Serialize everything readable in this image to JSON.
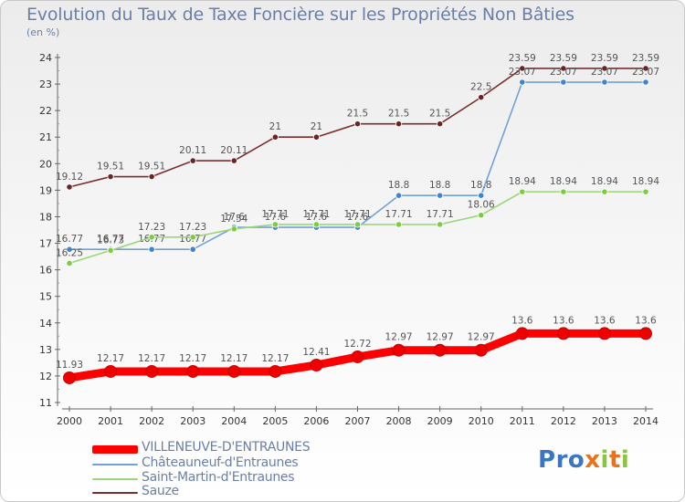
{
  "title": "Evolution du Taux de Taxe Foncière sur les Propriétés Non Bâties",
  "subtitle": "(en %)",
  "logo": {
    "letters": [
      "P",
      "r",
      "o",
      "x",
      "i",
      "t",
      "i"
    ],
    "colors": [
      "#3a76c4",
      "#3a76c4",
      "#3a76c4",
      "#e9731c",
      "#8bc53f",
      "#e9731c",
      "#8bc53f"
    ]
  },
  "chart_data": {
    "type": "line",
    "title": "Evolution du Taux de Taxe Foncière sur les Propriétés Non Bâties",
    "ylabel": "(en %)",
    "xlabel": "",
    "x": [
      "2000",
      "2001",
      "2002",
      "2003",
      "2004",
      "2005",
      "2006",
      "2007",
      "2008",
      "2009",
      "2010",
      "2011",
      "2012",
      "2013",
      "2014"
    ],
    "ylim": [
      11,
      24
    ],
    "yticks": [
      "11",
      "12",
      "13",
      "14",
      "15",
      "16",
      "17",
      "18",
      "19",
      "20",
      "21",
      "22",
      "23",
      "24"
    ],
    "grid": false,
    "legend_position": "bottom-left",
    "series": [
      {
        "name": "VILLENEUVE-D'ENTRAUNES",
        "color": "#ff0000",
        "markerColor": "#ee0000",
        "emphasis": true,
        "values": [
          11.93,
          12.17,
          12.17,
          12.17,
          12.17,
          12.17,
          12.41,
          12.72,
          12.97,
          12.97,
          12.97,
          13.6,
          13.6,
          13.6,
          13.6
        ],
        "labels": [
          "11.93",
          "12.17",
          "12.17",
          "12.17",
          "12.17",
          "12.17",
          "12.41",
          "12.72",
          "12.97",
          "12.97",
          "12.97",
          "13.6",
          "13.6",
          "13.6",
          "13.6"
        ]
      },
      {
        "name": "Châteauneuf-d'Entraunes",
        "color": "#6fa2d6",
        "markerColor": "#3f84cf",
        "emphasis": false,
        "values": [
          16.77,
          16.77,
          16.77,
          16.77,
          17.6,
          17.6,
          17.6,
          17.6,
          18.8,
          18.8,
          18.8,
          23.07,
          23.07,
          23.07,
          23.07
        ],
        "labels": [
          "16.77",
          "16.77",
          "16.77",
          "16.77",
          "17.6",
          "17.6",
          "17.6",
          "17.6",
          "18.8",
          "18.8",
          "18.8",
          "23.07",
          "23.07",
          "23.07",
          "23.07"
        ]
      },
      {
        "name": "Saint-Martin-d'Entraunes",
        "color": "#9bd67a",
        "markerColor": "#7ccc42",
        "emphasis": false,
        "values": [
          16.25,
          16.73,
          17.23,
          17.23,
          17.54,
          17.71,
          17.71,
          17.71,
          17.71,
          17.71,
          18.06,
          18.94,
          18.94,
          18.94,
          18.94
        ],
        "labels": [
          "16.25",
          "16.73",
          "17.23",
          "17.23",
          "17.54",
          "17.71",
          "17.71",
          "17.71",
          "17.71",
          "17.71",
          "18.06",
          "18.94",
          "18.94",
          "18.94",
          "18.94"
        ]
      },
      {
        "name": "Sauze",
        "color": "#7a2f2f",
        "markerColor": "#6b2424",
        "emphasis": false,
        "values": [
          19.12,
          19.51,
          19.51,
          20.11,
          20.11,
          21,
          21,
          21.5,
          21.5,
          21.5,
          22.5,
          23.59,
          23.59,
          23.59,
          23.59
        ],
        "labels": [
          "19.12",
          "19.51",
          "19.51",
          "20.11",
          "20.11",
          "21",
          "21",
          "21.5",
          "21.5",
          "21.5",
          "22.5",
          "23.59",
          "23.59",
          "23.59",
          "23.59"
        ]
      }
    ]
  }
}
